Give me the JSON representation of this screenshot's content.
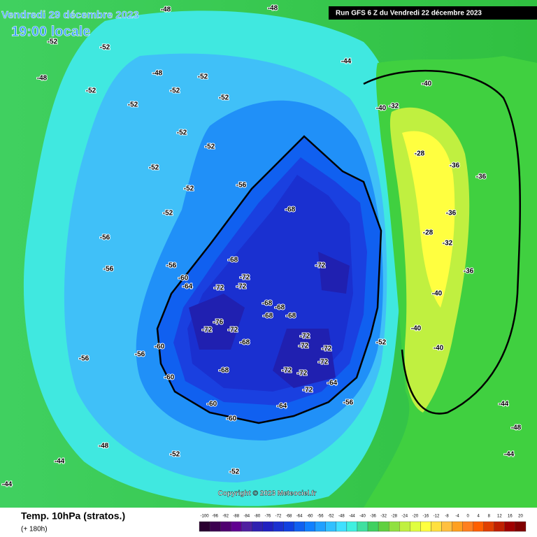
{
  "header": {
    "valid_date": "Vendredi 29 décembre 2023",
    "local_time": "19:00 locale",
    "run": "Run GFS 6 Z du Vendredi 22 décembre 2023"
  },
  "copyright": "Copyright © 2023 Meteociel.fr",
  "footer": {
    "parameter": "Temp. 10hPa (stratos.)",
    "lead_time": "(+ 180h)"
  },
  "colorbar": {
    "ticks": [
      -100,
      -96,
      -92,
      -88,
      -84,
      -80,
      -76,
      -72,
      -68,
      -64,
      -60,
      -56,
      -52,
      -48,
      -44,
      -40,
      -36,
      -32,
      -28,
      -24,
      -20,
      -16,
      -12,
      -8,
      -4,
      0,
      4,
      8,
      12,
      16,
      20
    ],
    "colors": [
      "#2a0030",
      "#3c0050",
      "#500070",
      "#600090",
      "#5020a0",
      "#3020b0",
      "#2020c0",
      "#1a30d0",
      "#1040e0",
      "#1060f0",
      "#1080ff",
      "#20a0ff",
      "#30c0ff",
      "#40e0ff",
      "#40f0e0",
      "#40e0a0",
      "#40d060",
      "#60d040",
      "#90e040",
      "#c0f040",
      "#e0ff40",
      "#ffff40",
      "#ffe040",
      "#ffc040",
      "#ffa020",
      "#ff8020",
      "#ff6000",
      "#e04000",
      "#c02000",
      "#a00000",
      "#800000"
    ]
  },
  "contour_labels": [
    "-48",
    "-48",
    "-44",
    "-52",
    "-52",
    "-48",
    "-48",
    "-52",
    "-52",
    "-52",
    "-52",
    "-52",
    "-52",
    "-52",
    "-52",
    "-52",
    "-52",
    "-56",
    "-56",
    "-56",
    "-56",
    "-60",
    "-64",
    "-68",
    "-68",
    "-72",
    "-72",
    "-72",
    "-72",
    "-76",
    "-72",
    "-72",
    "-68",
    "-68",
    "-68",
    "-68",
    "-68",
    "-72",
    "-72",
    "-72",
    "-72",
    "-72",
    "-72",
    "-72",
    "-68",
    "-64",
    "-64",
    "-60",
    "-60",
    "-60",
    "-60",
    "-56",
    "-56",
    "-52",
    "-52",
    "-48",
    "-44",
    "-44",
    "-40",
    "-40",
    "-36",
    "-36",
    "-32",
    "-28",
    "-28",
    "-32",
    "-36",
    "-40",
    "-40",
    "-44",
    "-44",
    "-48",
    "-52",
    "-56",
    "-40",
    "-36"
  ]
}
